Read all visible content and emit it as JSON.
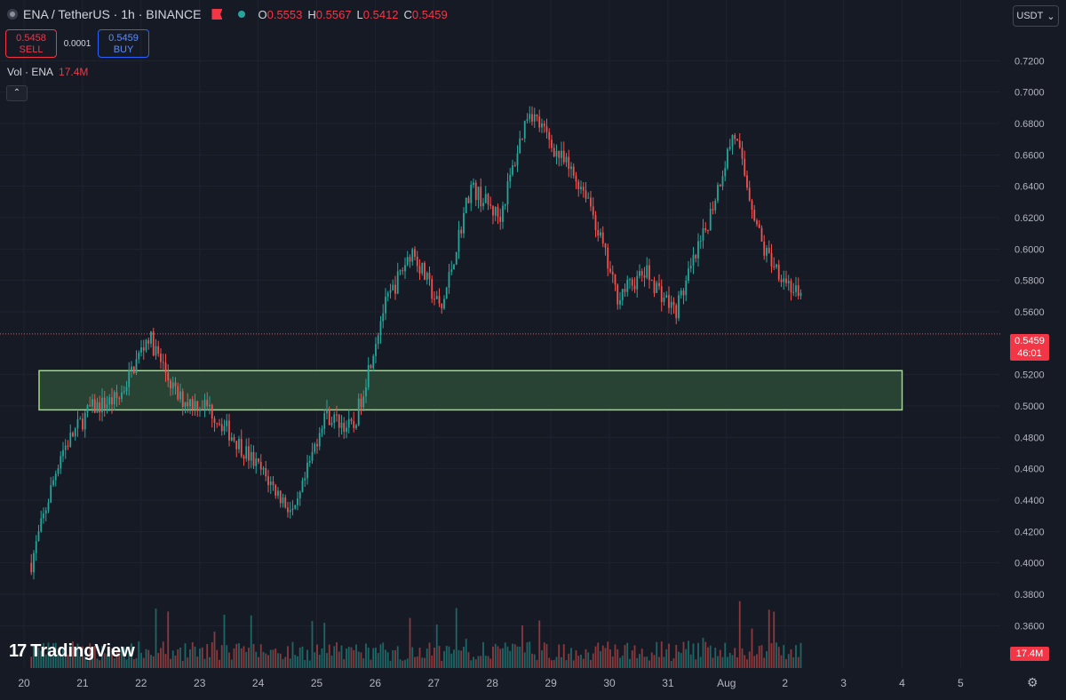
{
  "header": {
    "title": "ENA / TetherUS · 1h · BINANCE",
    "ohlc": [
      {
        "k": "O",
        "v": "0.5553"
      },
      {
        "k": "H",
        "v": "0.5567"
      },
      {
        "k": "L",
        "v": "0.5412"
      },
      {
        "k": "C",
        "v": "0.5459"
      }
    ]
  },
  "trade": {
    "sell_price": "0.5458",
    "sell_label": "SELL",
    "spread": "0.0001",
    "buy_price": "0.5459",
    "buy_label": "BUY"
  },
  "volume": {
    "label": "Vol · ENA",
    "value": "17.4M"
  },
  "currency": {
    "label": "USDT",
    "icon": "chevron-down-icon"
  },
  "price_badge": {
    "price": "0.5459",
    "countdown": "46:01"
  },
  "volume_badge": "17.4M",
  "logo": {
    "mark": "17",
    "text": "TradingView"
  },
  "colors": {
    "up": "#26a69a",
    "down": "#ef5350",
    "zone_border": "#9ae07a",
    "zone_fill": "#2b4a36",
    "background": "#161a25"
  },
  "chart_data": {
    "type": "candlestick",
    "y_ticks": [
      "0.7200",
      "0.7000",
      "0.6800",
      "0.6600",
      "0.6400",
      "0.6200",
      "0.6000",
      "0.5800",
      "0.5600",
      "0.5200",
      "0.5000",
      "0.4800",
      "0.4600",
      "0.4400",
      "0.4200",
      "0.4000",
      "0.3800",
      "0.3600"
    ],
    "x_ticks": [
      "20",
      "21",
      "22",
      "23",
      "24",
      "25",
      "26",
      "27",
      "28",
      "29",
      "30",
      "31",
      "Aug",
      "2",
      "3",
      "4",
      "5"
    ],
    "ylim": [
      0.35,
      0.74
    ],
    "current_price": 0.5459,
    "support_zone": {
      "low": 0.4975,
      "high": 0.5225,
      "from": "20",
      "to": "4"
    },
    "price_path": [
      {
        "x": "20",
        "y": 0.4
      },
      {
        "x": "20",
        "y": 0.47
      },
      {
        "x": "21",
        "y": 0.498
      },
      {
        "x": "21",
        "y": 0.505
      },
      {
        "x": "22",
        "y": 0.545
      },
      {
        "x": "22",
        "y": 0.505
      },
      {
        "x": "23",
        "y": 0.5
      },
      {
        "x": "23",
        "y": 0.478
      },
      {
        "x": "24",
        "y": 0.455
      },
      {
        "x": "24",
        "y": 0.43
      },
      {
        "x": "25",
        "y": 0.495
      },
      {
        "x": "25",
        "y": 0.485
      },
      {
        "x": "26",
        "y": 0.56
      },
      {
        "x": "26",
        "y": 0.6
      },
      {
        "x": "27",
        "y": 0.56
      },
      {
        "x": "27",
        "y": 0.64
      },
      {
        "x": "28",
        "y": 0.62
      },
      {
        "x": "28",
        "y": 0.69
      },
      {
        "x": "29",
        "y": 0.66
      },
      {
        "x": "29",
        "y": 0.635
      },
      {
        "x": "30",
        "y": 0.57
      },
      {
        "x": "30",
        "y": 0.585
      },
      {
        "x": "31",
        "y": 0.56
      },
      {
        "x": "31",
        "y": 0.61
      },
      {
        "x": "Aug",
        "y": 0.675
      },
      {
        "x": "Aug",
        "y": 0.6
      },
      {
        "x": "2",
        "y": 0.575
      },
      {
        "x": "2",
        "y": 0.545
      }
    ]
  }
}
